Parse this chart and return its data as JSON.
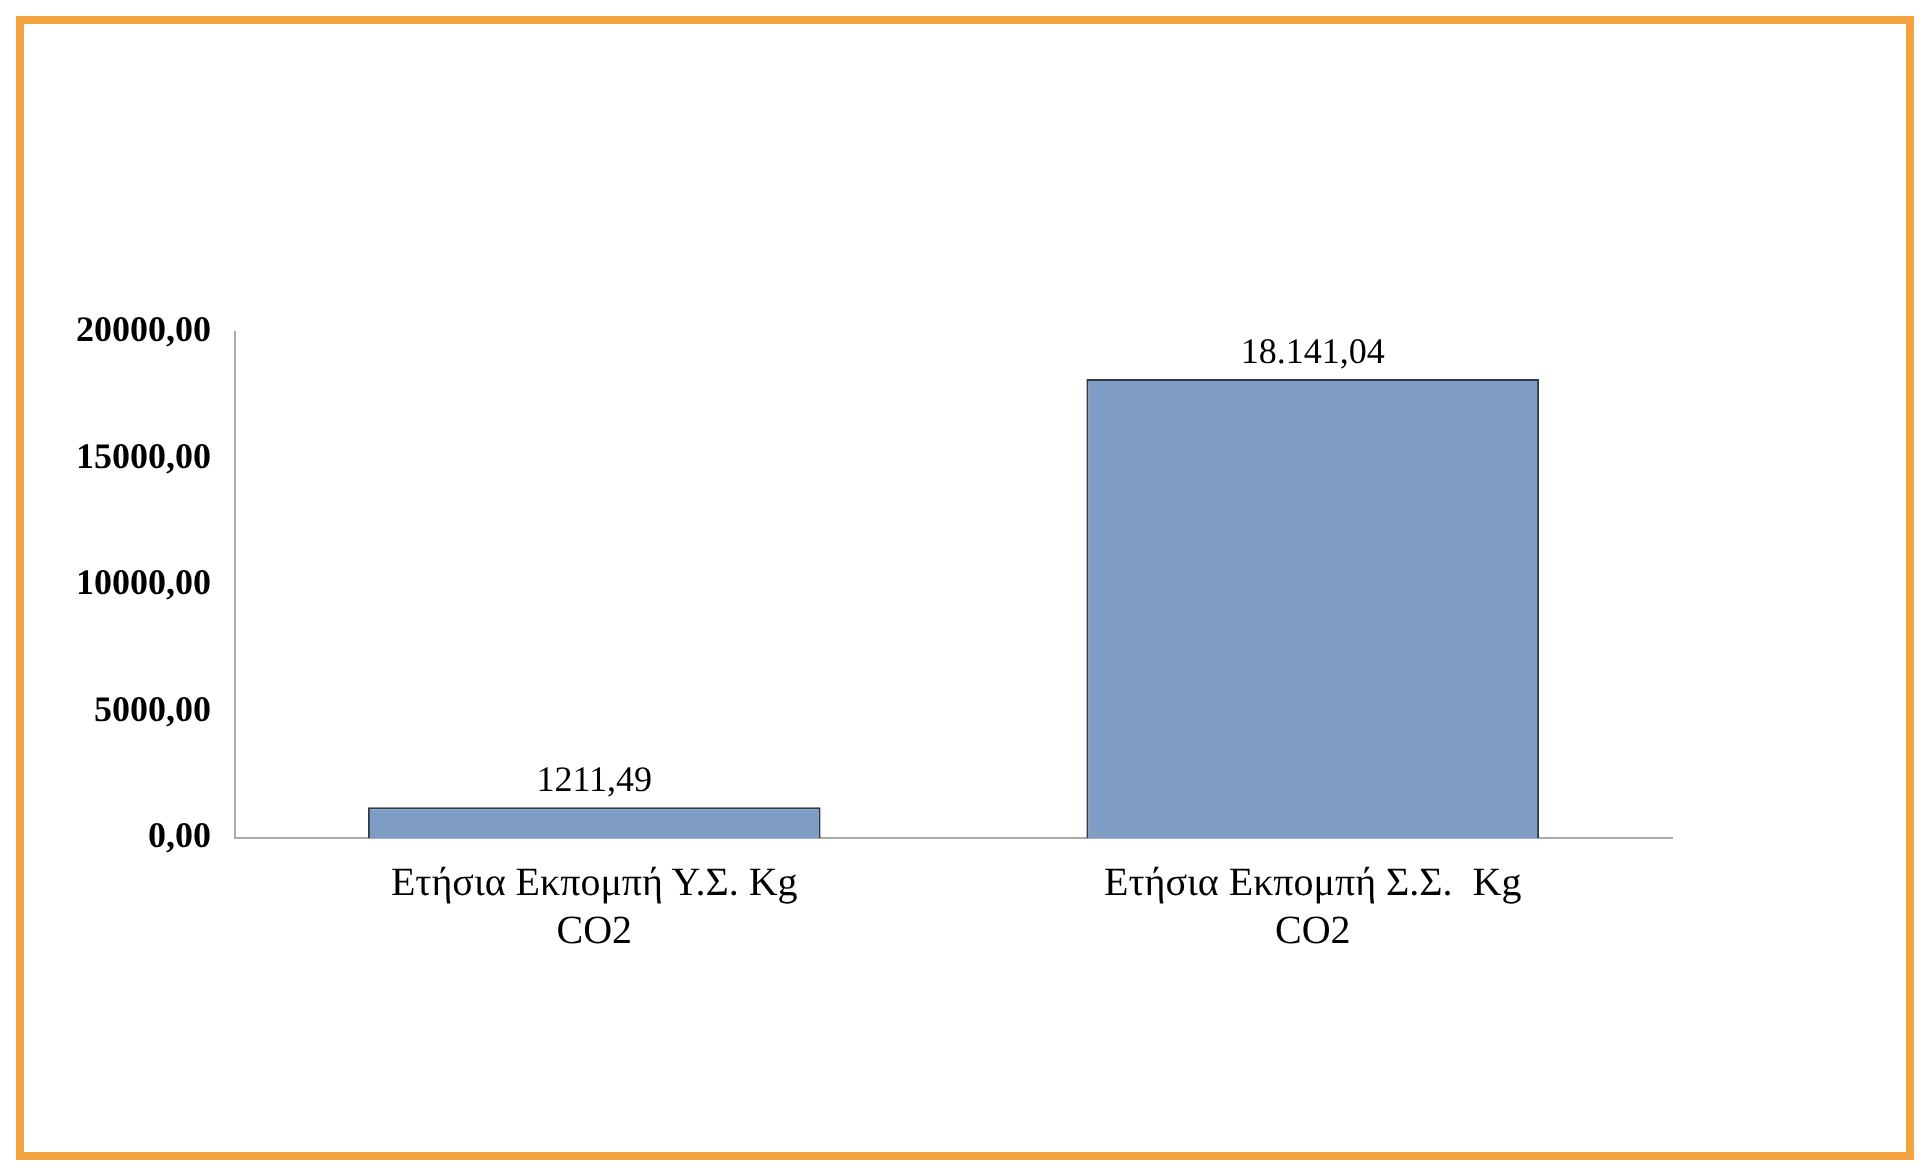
{
  "chart_data": {
    "type": "bar",
    "categories": [
      "Ετήσια Εκπομπή Υ.Σ. Kg CO2",
      "Ετήσια Εκπομπή Σ.Σ.  Kg CO2"
    ],
    "values": [
      1211.49,
      18141.04
    ],
    "value_labels": [
      "1211,49",
      "18.141,04"
    ],
    "color": "#7f9cc4",
    "ylim": [
      0,
      20000
    ],
    "yticks": [
      {
        "value": 0,
        "label": "0,00"
      },
      {
        "value": 5000,
        "label": "5000,00"
      },
      {
        "value": 10000,
        "label": "10000,00"
      },
      {
        "value": 15000,
        "label": "15000,00"
      },
      {
        "value": 20000,
        "label": "20000,00"
      }
    ],
    "grid": false,
    "legend": false
  }
}
